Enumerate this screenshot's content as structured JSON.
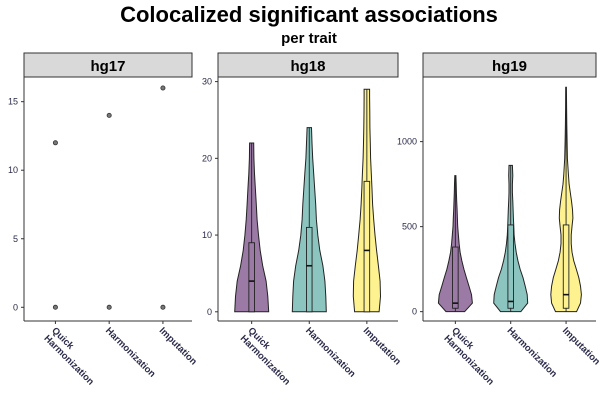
{
  "chart_data": {
    "type": "violin",
    "title": "Colocalized significant associations",
    "subtitle": "per trait",
    "xlabel": "",
    "ylabel": "",
    "categories": [
      "Quick Harmonization",
      "Harmonization",
      "Imputation"
    ],
    "category_lines": [
      [
        "Quick",
        "Harmonization"
      ],
      [
        "Harmonization"
      ],
      [
        "Imputation"
      ]
    ],
    "fill_colors": [
      "#9b7aa5",
      "#8cc5c0",
      "#fdf28f"
    ],
    "outline_color": "#222222",
    "grid": false,
    "legend": "none",
    "panels": [
      {
        "name": "hg17",
        "ylim": [
          -1,
          16.8
        ],
        "yticks": [
          0,
          5,
          10,
          15
        ],
        "geom": "points",
        "points": [
          {
            "category": "Quick Harmonization",
            "values": [
              0,
              12
            ]
          },
          {
            "category": "Harmonization",
            "values": [
              0,
              14
            ]
          },
          {
            "category": "Imputation",
            "values": [
              0,
              16
            ]
          }
        ]
      },
      {
        "name": "hg18",
        "ylim": [
          -1.2,
          30.6
        ],
        "yticks": [
          0,
          10,
          20,
          30
        ],
        "geom": "violin",
        "violins": [
          {
            "category": "Quick Harmonization",
            "min": 0,
            "q1": 0,
            "median": 4,
            "q3": 9,
            "max": 22,
            "density": [
              [
                0,
                1.0
              ],
              [
                2,
                0.95
              ],
              [
                4,
                0.85
              ],
              [
                6,
                0.65
              ],
              [
                8,
                0.5
              ],
              [
                10,
                0.4
              ],
              [
                12,
                0.32
              ],
              [
                14,
                0.27
              ],
              [
                16,
                0.22
              ],
              [
                18,
                0.17
              ],
              [
                20,
                0.13
              ],
              [
                22,
                0.12
              ]
            ]
          },
          {
            "category": "Harmonization",
            "min": 0,
            "q1": 0,
            "median": 6,
            "q3": 11,
            "max": 24,
            "density": [
              [
                0,
                1.0
              ],
              [
                2,
                0.97
              ],
              [
                4,
                0.92
              ],
              [
                6,
                0.8
              ],
              [
                8,
                0.62
              ],
              [
                10,
                0.5
              ],
              [
                12,
                0.42
              ],
              [
                14,
                0.38
              ],
              [
                16,
                0.32
              ],
              [
                18,
                0.26
              ],
              [
                20,
                0.2
              ],
              [
                22,
                0.16
              ],
              [
                24,
                0.13
              ]
            ]
          },
          {
            "category": "Imputation",
            "min": 0,
            "q1": 0,
            "median": 8,
            "q3": 17,
            "max": 29,
            "density": [
              [
                0,
                0.72
              ],
              [
                2,
                0.8
              ],
              [
                4,
                0.78
              ],
              [
                6,
                0.68
              ],
              [
                8,
                0.57
              ],
              [
                10,
                0.48
              ],
              [
                12,
                0.4
              ],
              [
                14,
                0.34
              ],
              [
                16,
                0.3
              ],
              [
                18,
                0.26
              ],
              [
                20,
                0.22
              ],
              [
                22,
                0.2
              ],
              [
                24,
                0.18
              ],
              [
                26,
                0.17
              ],
              [
                28,
                0.16
              ],
              [
                29,
                0.16
              ]
            ]
          }
        ]
      },
      {
        "name": "hg19",
        "ylim": [
          -55,
          1380
        ],
        "yticks": [
          0,
          500,
          1000
        ],
        "geom": "violin",
        "violins": [
          {
            "category": "Quick Harmonization",
            "min": 0,
            "q1": 20,
            "median": 50,
            "q3": 380,
            "max": 800,
            "density": [
              [
                0,
                0.55
              ],
              [
                50,
                1.0
              ],
              [
                100,
                0.95
              ],
              [
                150,
                0.8
              ],
              [
                200,
                0.65
              ],
              [
                250,
                0.5
              ],
              [
                300,
                0.38
              ],
              [
                350,
                0.28
              ],
              [
                400,
                0.22
              ],
              [
                450,
                0.18
              ],
              [
                500,
                0.14
              ],
              [
                550,
                0.12
              ],
              [
                600,
                0.1
              ],
              [
                650,
                0.08
              ],
              [
                700,
                0.06
              ],
              [
                750,
                0.05
              ],
              [
                800,
                0.03
              ]
            ]
          },
          {
            "category": "Harmonization",
            "min": 0,
            "q1": 20,
            "median": 60,
            "q3": 510,
            "max": 860,
            "density": [
              [
                0,
                0.6
              ],
              [
                50,
                1.0
              ],
              [
                100,
                0.97
              ],
              [
                150,
                0.85
              ],
              [
                200,
                0.72
              ],
              [
                250,
                0.55
              ],
              [
                300,
                0.42
              ],
              [
                350,
                0.32
              ],
              [
                400,
                0.25
              ],
              [
                450,
                0.2
              ],
              [
                500,
                0.18
              ],
              [
                550,
                0.16
              ],
              [
                600,
                0.14
              ],
              [
                650,
                0.12
              ],
              [
                700,
                0.1
              ],
              [
                750,
                0.1
              ],
              [
                800,
                0.12
              ],
              [
                860,
                0.1
              ]
            ]
          },
          {
            "category": "Imputation",
            "min": 0,
            "q1": 20,
            "median": 100,
            "q3": 510,
            "max": 1320,
            "density": [
              [
                0,
                0.62
              ],
              [
                50,
                0.85
              ],
              [
                100,
                0.9
              ],
              [
                150,
                0.85
              ],
              [
                200,
                0.75
              ],
              [
                250,
                0.6
              ],
              [
                300,
                0.45
              ],
              [
                350,
                0.35
              ],
              [
                400,
                0.3
              ],
              [
                450,
                0.3
              ],
              [
                500,
                0.35
              ],
              [
                550,
                0.4
              ],
              [
                600,
                0.38
              ],
              [
                650,
                0.32
              ],
              [
                700,
                0.25
              ],
              [
                750,
                0.18
              ],
              [
                800,
                0.14
              ],
              [
                900,
                0.08
              ],
              [
                1000,
                0.06
              ],
              [
                1100,
                0.04
              ],
              [
                1200,
                0.03
              ],
              [
                1320,
                0.02
              ]
            ]
          }
        ]
      }
    ]
  }
}
